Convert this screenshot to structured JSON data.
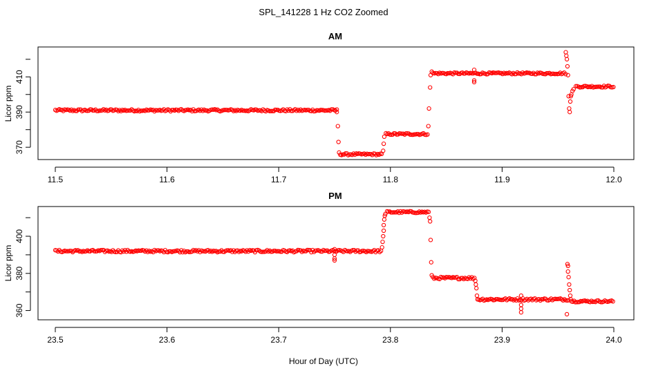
{
  "figure": {
    "title": "SPL_141228  1 Hz CO2 Zoomed",
    "xlabel": "Hour of Day (UTC)"
  },
  "colors": {
    "points": "#ff0000",
    "axes": "#000000",
    "background": "#ffffff"
  },
  "chart_data": [
    {
      "type": "scatter",
      "title": "AM",
      "xlabel": "",
      "ylabel": "Licor ppm",
      "xlim": [
        11.5,
        12.0
      ],
      "ylim": [
        363,
        427
      ],
      "xticks": [
        11.5,
        11.6,
        11.7,
        11.8,
        11.9,
        12.0
      ],
      "xtick_labels": [
        "11.5",
        "11.6",
        "11.7",
        "11.8",
        "11.9",
        "12.0"
      ],
      "yticks": [
        370,
        390,
        410
      ],
      "ytick_labels": [
        "370",
        "390",
        "410"
      ],
      "grid": false,
      "marker": "open-circle",
      "segments": [
        {
          "x_start": 11.5,
          "x_end": 11.752,
          "y": 391,
          "noise": 0.6
        },
        {
          "x_start": 11.755,
          "x_end": 11.793,
          "y": 366,
          "noise": 0.5
        },
        {
          "x_start": 11.796,
          "x_end": 11.834,
          "y": 377.5,
          "noise": 0.5
        },
        {
          "x_start": 11.838,
          "x_end": 11.957,
          "y": 412,
          "noise": 0.5
        },
        {
          "x_start": 11.966,
          "x_end": 12.0,
          "y": 404.5,
          "noise": 0.5
        }
      ],
      "points": [
        [
          11.752,
          390
        ],
        [
          11.753,
          382
        ],
        [
          11.7535,
          373
        ],
        [
          11.754,
          367
        ],
        [
          11.7935,
          368
        ],
        [
          11.794,
          372
        ],
        [
          11.7945,
          376
        ],
        [
          11.834,
          382
        ],
        [
          11.8345,
          392
        ],
        [
          11.8355,
          404
        ],
        [
          11.836,
          411
        ],
        [
          11.837,
          413
        ],
        [
          11.875,
          414
        ],
        [
          11.875,
          408
        ],
        [
          11.875,
          407
        ],
        [
          11.957,
          424
        ],
        [
          11.9575,
          422
        ],
        [
          11.958,
          420
        ],
        [
          11.9585,
          416
        ],
        [
          11.959,
          411
        ],
        [
          11.9595,
          399
        ],
        [
          11.96,
          392
        ],
        [
          11.9605,
          390
        ],
        [
          11.961,
          396
        ],
        [
          11.9615,
          399
        ],
        [
          11.962,
          400
        ],
        [
          11.963,
          402
        ],
        [
          11.964,
          403
        ]
      ]
    },
    {
      "type": "scatter",
      "title": "PM",
      "xlabel": "",
      "ylabel": "Licor ppm",
      "xlim": [
        23.5,
        24.0
      ],
      "ylim": [
        355,
        416
      ],
      "xticks": [
        23.5,
        23.6,
        23.7,
        23.8,
        23.9,
        24.0
      ],
      "xtick_labels": [
        "23.5",
        "23.6",
        "23.7",
        "23.8",
        "23.9",
        "24.0"
      ],
      "yticks": [
        360,
        380,
        400
      ],
      "ytick_labels": [
        "360",
        "380",
        "400"
      ],
      "grid": false,
      "marker": "open-circle",
      "segments": [
        {
          "x_start": 23.5,
          "x_end": 23.792,
          "y": 392,
          "noise": 0.6
        },
        {
          "x_start": 23.797,
          "x_end": 23.835,
          "y": 413,
          "noise": 0.5
        },
        {
          "x_start": 23.838,
          "x_end": 23.876,
          "y": 377.5,
          "noise": 0.6
        },
        {
          "x_start": 23.879,
          "x_end": 23.96,
          "y": 366,
          "noise": 0.6
        },
        {
          "x_start": 23.962,
          "x_end": 24.0,
          "y": 365,
          "noise": 0.5
        }
      ],
      "points": [
        [
          23.75,
          393
        ],
        [
          23.75,
          390
        ],
        [
          23.75,
          388
        ],
        [
          23.75,
          387
        ],
        [
          23.7925,
          394
        ],
        [
          23.793,
          397
        ],
        [
          23.7935,
          400
        ],
        [
          23.794,
          403
        ],
        [
          23.794,
          406
        ],
        [
          23.7945,
          409
        ],
        [
          23.795,
          411
        ],
        [
          23.7955,
          412
        ],
        [
          23.835,
          410
        ],
        [
          23.8355,
          408
        ],
        [
          23.836,
          398
        ],
        [
          23.8365,
          386
        ],
        [
          23.837,
          379
        ],
        [
          23.876,
          376
        ],
        [
          23.8765,
          374
        ],
        [
          23.877,
          372
        ],
        [
          23.8775,
          368
        ],
        [
          23.878,
          366
        ],
        [
          23.917,
          368
        ],
        [
          23.917,
          363
        ],
        [
          23.917,
          361
        ],
        [
          23.917,
          359
        ],
        [
          23.958,
          358
        ],
        [
          23.9585,
          385
        ],
        [
          23.959,
          384
        ],
        [
          23.959,
          381
        ],
        [
          23.9595,
          378
        ],
        [
          23.96,
          374
        ],
        [
          23.9605,
          371
        ],
        [
          23.961,
          368
        ],
        [
          23.9615,
          366
        ]
      ]
    }
  ]
}
